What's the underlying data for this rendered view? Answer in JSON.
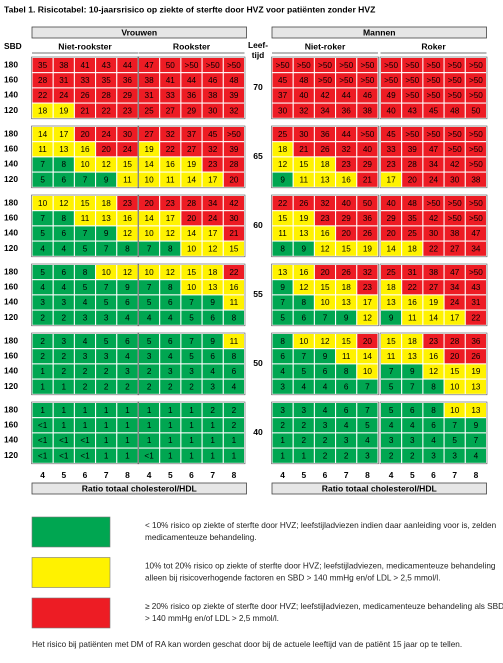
{
  "title": "Tabel 1. Risicotabel: 10-jaarsrisico op ziekte of sterfte door HVZ voor patiënten zonder HVZ",
  "groups": [
    {
      "label": "Vrouwen",
      "subgroups": [
        "Niet-rookster",
        "Rookster"
      ]
    },
    {
      "label": "Mannen",
      "subgroups": [
        "Niet-roker",
        "Roker"
      ]
    }
  ],
  "sbd_label": "SBD",
  "age_label": [
    "Leef-",
    "tijd"
  ],
  "sbd_levels": [
    180,
    160,
    140,
    120
  ],
  "cholesterol": [
    4,
    5,
    6,
    7,
    8
  ],
  "cholesterol_label": "Ratio totaal cholesterol/HDL",
  "blocks": [
    {
      "age": 70,
      "rows": [
        [
          35,
          38,
          41,
          43,
          44,
          47,
          50,
          ">50",
          ">50",
          ">50",
          ">50",
          ">50",
          ">50",
          ">50",
          ">50",
          ">50",
          ">50",
          ">50",
          ">50",
          ">50"
        ],
        [
          28,
          31,
          33,
          35,
          36,
          38,
          41,
          44,
          46,
          48,
          45,
          48,
          ">50",
          ">50",
          ">50",
          ">50",
          ">50",
          ">50",
          ">50",
          ">50"
        ],
        [
          22,
          24,
          26,
          28,
          29,
          31,
          33,
          36,
          38,
          39,
          37,
          40,
          42,
          44,
          46,
          49,
          ">50",
          ">50",
          ">50",
          ">50"
        ],
        [
          18,
          19,
          21,
          22,
          23,
          25,
          27,
          29,
          30,
          32,
          30,
          32,
          34,
          36,
          38,
          40,
          43,
          45,
          48,
          50
        ]
      ]
    },
    {
      "age": 65,
      "rows": [
        [
          14,
          17,
          20,
          24,
          30,
          27,
          32,
          37,
          45,
          ">50",
          25,
          30,
          36,
          44,
          ">50",
          45,
          ">50",
          ">50",
          ">50",
          ">50"
        ],
        [
          11,
          13,
          16,
          20,
          24,
          19,
          22,
          27,
          32,
          39,
          18,
          21,
          26,
          32,
          40,
          33,
          39,
          47,
          ">50",
          ">50"
        ],
        [
          7,
          8,
          10,
          12,
          15,
          14,
          16,
          19,
          23,
          28,
          12,
          15,
          18,
          23,
          29,
          23,
          28,
          34,
          42,
          ">50"
        ],
        [
          5,
          6,
          7,
          9,
          11,
          10,
          11,
          14,
          17,
          20,
          9,
          11,
          13,
          16,
          21,
          17,
          20,
          24,
          30,
          38
        ]
      ]
    },
    {
      "age": 60,
      "rows": [
        [
          10,
          12,
          15,
          18,
          23,
          20,
          23,
          28,
          34,
          42,
          22,
          26,
          32,
          40,
          50,
          40,
          48,
          ">50",
          ">50",
          ">50"
        ],
        [
          7,
          8,
          11,
          13,
          16,
          14,
          17,
          20,
          24,
          30,
          15,
          19,
          23,
          29,
          36,
          29,
          35,
          42,
          ">50",
          ">50"
        ],
        [
          5,
          6,
          7,
          9,
          12,
          10,
          12,
          14,
          17,
          21,
          11,
          13,
          16,
          20,
          26,
          20,
          25,
          30,
          38,
          47
        ],
        [
          4,
          4,
          5,
          7,
          8,
          7,
          8,
          10,
          12,
          15,
          8,
          9,
          12,
          15,
          19,
          14,
          18,
          22,
          27,
          34
        ]
      ]
    },
    {
      "age": 55,
      "rows": [
        [
          5,
          6,
          8,
          10,
          12,
          10,
          12,
          15,
          18,
          22,
          13,
          16,
          20,
          26,
          32,
          25,
          31,
          38,
          47,
          ">50"
        ],
        [
          4,
          4,
          5,
          7,
          9,
          7,
          8,
          10,
          13,
          16,
          9,
          12,
          15,
          18,
          23,
          18,
          22,
          27,
          34,
          43
        ],
        [
          3,
          3,
          4,
          5,
          6,
          5,
          6,
          7,
          9,
          11,
          7,
          8,
          10,
          13,
          17,
          13,
          16,
          19,
          24,
          31
        ],
        [
          2,
          2,
          3,
          3,
          4,
          4,
          4,
          5,
          6,
          8,
          5,
          6,
          7,
          9,
          12,
          9,
          11,
          14,
          17,
          22
        ]
      ]
    },
    {
      "age": 50,
      "rows": [
        [
          2,
          3,
          4,
          5,
          6,
          5,
          6,
          7,
          9,
          11,
          8,
          10,
          12,
          15,
          20,
          15,
          18,
          23,
          28,
          36
        ],
        [
          2,
          2,
          3,
          3,
          4,
          3,
          4,
          5,
          6,
          8,
          6,
          7,
          9,
          11,
          14,
          11,
          13,
          16,
          20,
          26
        ],
        [
          1,
          2,
          2,
          2,
          3,
          2,
          3,
          3,
          4,
          6,
          4,
          5,
          6,
          8,
          10,
          7,
          9,
          12,
          15,
          19
        ],
        [
          1,
          1,
          2,
          2,
          2,
          2,
          2,
          2,
          3,
          4,
          3,
          4,
          4,
          6,
          7,
          5,
          7,
          8,
          10,
          13
        ]
      ]
    },
    {
      "age": 40,
      "rows": [
        [
          1,
          1,
          1,
          1,
          1,
          1,
          1,
          1,
          2,
          2,
          3,
          3,
          4,
          6,
          7,
          5,
          6,
          8,
          10,
          13
        ],
        [
          "<1",
          1,
          1,
          1,
          1,
          1,
          1,
          1,
          1,
          2,
          2,
          2,
          3,
          4,
          5,
          4,
          4,
          6,
          7,
          9
        ],
        [
          "<1",
          "<1",
          "<1",
          1,
          1,
          1,
          1,
          1,
          1,
          1,
          1,
          2,
          2,
          3,
          4,
          3,
          3,
          4,
          5,
          7
        ],
        [
          "<1",
          "<1",
          "<1",
          1,
          1,
          "<1",
          1,
          1,
          1,
          1,
          1,
          1,
          2,
          2,
          3,
          2,
          2,
          3,
          3,
          4
        ]
      ]
    }
  ],
  "legend": [
    {
      "color": "#00a651",
      "lines": [
        "< 10% risico op ziekte of sterfte door HVZ; leefstijladviezen indien daar aanleiding voor is, zelden",
        "medicamenteuze behandeling."
      ]
    },
    {
      "color": "#fff200",
      "lines": [
        "10% tot 20% risico op ziekte of sterfte door HVZ; leefstijladviezen, medicamenteuze behandeling",
        "alleen bij risicoverhogende factoren en SBD > 140 mmHg en/of LDL > 2,5 mmol/l."
      ]
    },
    {
      "color": "#ed1c24",
      "lines": [
        "≥ 20% risico op ziekte of sterfte door HVZ; leefstijladviezen, medicamenteuze behandeling als SBD",
        "> 140 mmHg en/of LDL > 2,5 mmol/l."
      ]
    }
  ],
  "footnote": "Het risico bij patiënten met DM of RA kan worden geschat door bij de actuele leeftijd van de patiënt 15 jaar op te tellen."
}
